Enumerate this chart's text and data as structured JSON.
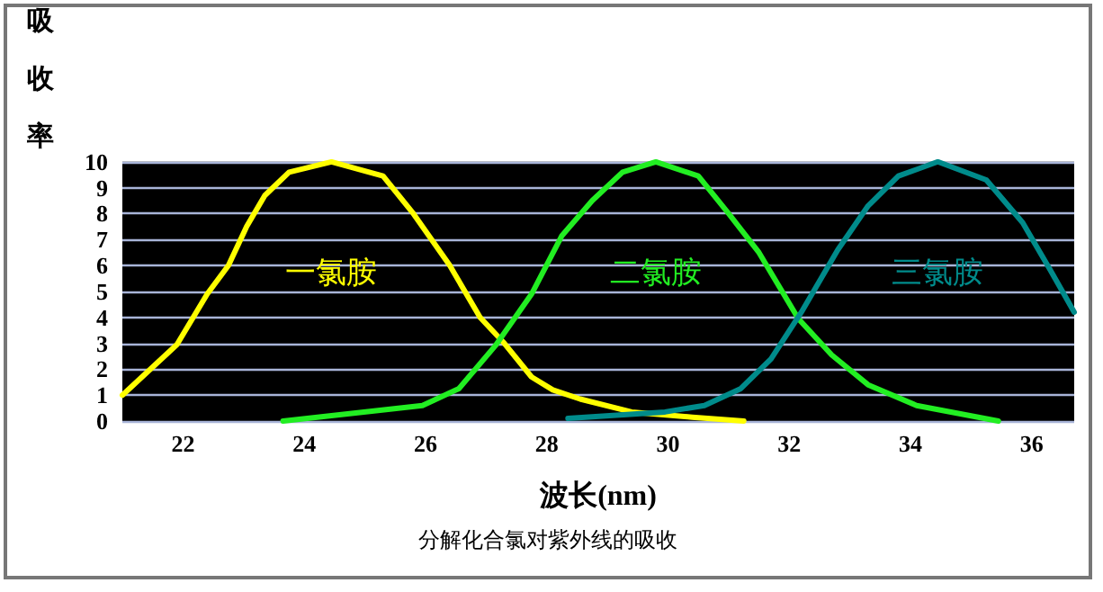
{
  "chart_data": {
    "type": "line",
    "xlabel": "波长(nm)",
    "ylabel": "吸收率",
    "annotations": [
      "分解化合氯对紫外线的吸收"
    ],
    "xlim": [
      21,
      36.7
    ],
    "xticks": [
      22,
      24,
      26,
      28,
      30,
      32,
      34,
      36
    ],
    "ylim": [
      0,
      10
    ],
    "yticks": [
      0,
      1,
      2,
      3,
      4,
      5,
      6,
      7,
      8,
      9,
      10
    ],
    "grid": "y",
    "legend": false,
    "marker": "none",
    "line_style": "solid",
    "series": [
      {
        "name": "一氯胺",
        "color": "#ffff00",
        "x": [
          21,
          21.9,
          22.4,
          22.75,
          23.05,
          23.35,
          23.75,
          24.45,
          25.3,
          25.8,
          26.4,
          26.9,
          27.3,
          27.75,
          28.1,
          28.55,
          29.4,
          30.4,
          31.25
        ],
        "values": [
          1,
          2.95,
          4.9,
          6,
          7.5,
          8.7,
          9.6,
          10,
          9.45,
          8,
          6,
          4,
          3,
          1.7,
          1.2,
          0.85,
          0.35,
          0.15,
          0
        ]
      },
      {
        "name": "二氯胺",
        "color": "#22ee22",
        "x": [
          23.65,
          25.95,
          26.55,
          27.15,
          27.75,
          28.25,
          28.75,
          29.25,
          29.8,
          30.5,
          31,
          31.5,
          32.15,
          32.7,
          33.3,
          34.1,
          35.45
        ],
        "values": [
          0,
          0.6,
          1.25,
          2.9,
          4.9,
          7.15,
          8.5,
          9.6,
          10,
          9.45,
          8,
          6.5,
          3.95,
          2.55,
          1.4,
          0.6,
          0
        ]
      },
      {
        "name": "三氯胺",
        "color": "#008b8b",
        "x": [
          28.35,
          29.95,
          30.6,
          31.2,
          31.7,
          32.2,
          32.8,
          33.3,
          33.8,
          34.45,
          35.25,
          35.85,
          36.3,
          36.7
        ],
        "values": [
          0.1,
          0.35,
          0.6,
          1.25,
          2.4,
          4.2,
          6.6,
          8.3,
          9.45,
          10,
          9.3,
          7.65,
          5.85,
          4.2
        ]
      }
    ]
  }
}
